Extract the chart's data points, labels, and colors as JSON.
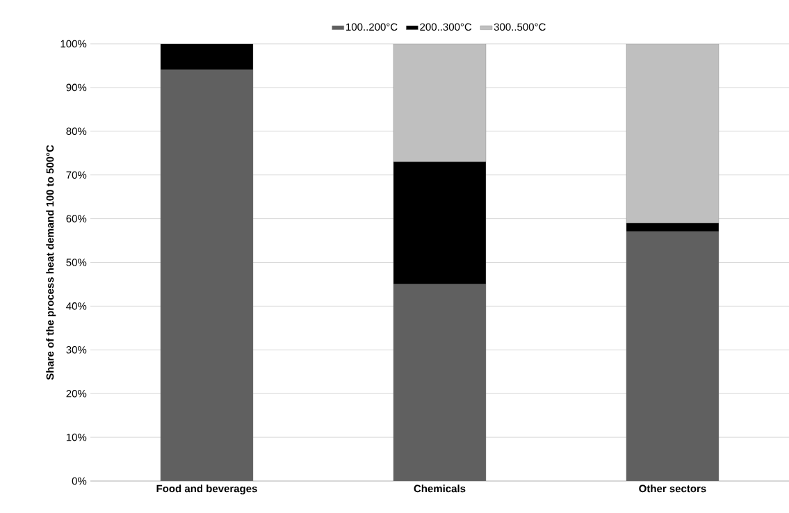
{
  "chart_data": {
    "type": "bar",
    "stacked": true,
    "ylabel": "Share of the process heat demand 100 to 500°C",
    "categories": [
      "Food and beverages",
      "Chemicals",
      "Other sectors"
    ],
    "series": [
      {
        "name": "100..200°C",
        "color": "#606060",
        "values": [
          94,
          45,
          57
        ]
      },
      {
        "name": "200..300°C",
        "color": "#000000",
        "values": [
          6,
          28,
          2
        ]
      },
      {
        "name": "300..500°C",
        "color": "#bfbfbf",
        "values": [
          0,
          27,
          41
        ]
      }
    ],
    "ylim": [
      0,
      100
    ],
    "yticks": [
      {
        "value": 0,
        "label": "0%"
      },
      {
        "value": 10,
        "label": "10%"
      },
      {
        "value": 20,
        "label": "20%"
      },
      {
        "value": 30,
        "label": "30%"
      },
      {
        "value": 40,
        "label": "40%"
      },
      {
        "value": 50,
        "label": "50%"
      },
      {
        "value": 60,
        "label": "60%"
      },
      {
        "value": 70,
        "label": "70%"
      },
      {
        "value": 80,
        "label": "80%"
      },
      {
        "value": 90,
        "label": "90%"
      },
      {
        "value": 100,
        "label": "100%"
      }
    ],
    "grid": "y",
    "legend": "top"
  }
}
